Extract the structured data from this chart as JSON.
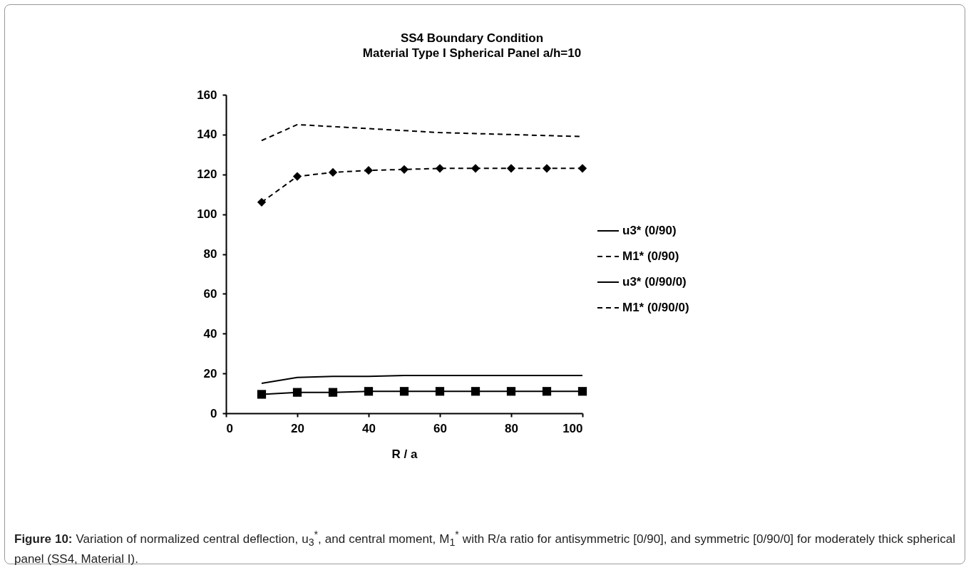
{
  "chart_data": {
    "type": "line",
    "title": "SS4 Boundary Condition",
    "subtitle": "Material Type I Spherical Panel a/h=10",
    "xlabel": "R / a",
    "x": [
      10,
      20,
      30,
      40,
      50,
      60,
      70,
      80,
      90,
      100
    ],
    "series": [
      {
        "name": "u3* (0/90)",
        "color": "#000000",
        "line_style": "solid",
        "marker": "none",
        "values": [
          15,
          18,
          18.5,
          18.5,
          19,
          19,
          19,
          19,
          19,
          19
        ]
      },
      {
        "name": "M1* (0/90)",
        "color": "#000000",
        "line_style": "dashed",
        "marker": "none",
        "values": [
          137,
          145,
          144,
          143,
          142,
          141,
          140.5,
          140,
          139.5,
          139
        ]
      },
      {
        "name": "u3* (0/90/0)",
        "color": "#000000",
        "line_style": "solid",
        "marker": "square",
        "values": [
          9.5,
          10.5,
          10.5,
          11,
          11,
          11,
          11,
          11,
          11,
          11
        ]
      },
      {
        "name": "M1* (0/90/0)",
        "color": "#000000",
        "line_style": "dashed",
        "marker": "diamond",
        "values": [
          106,
          119,
          121,
          122,
          122.5,
          123,
          123,
          123,
          123,
          123
        ]
      }
    ],
    "xlim": [
      0,
      100
    ],
    "xticks": [
      0,
      20,
      40,
      60,
      80,
      100
    ],
    "ylim": [
      0,
      160
    ],
    "yticks": [
      0,
      20,
      40,
      60,
      80,
      100,
      120,
      140,
      160
    ],
    "grid": false,
    "legend": "right",
    "annotations": [
      "Figure 10: Variation of normalized central deflection, u$_{3}$$^{*}$, and central moment, M$_{1}$$^{*}$ with R/a ratio for antisymmetric [0/90], and symmetric [0/90/0] for moderately thick spherical panel (SS4, Material I)."
    ]
  }
}
